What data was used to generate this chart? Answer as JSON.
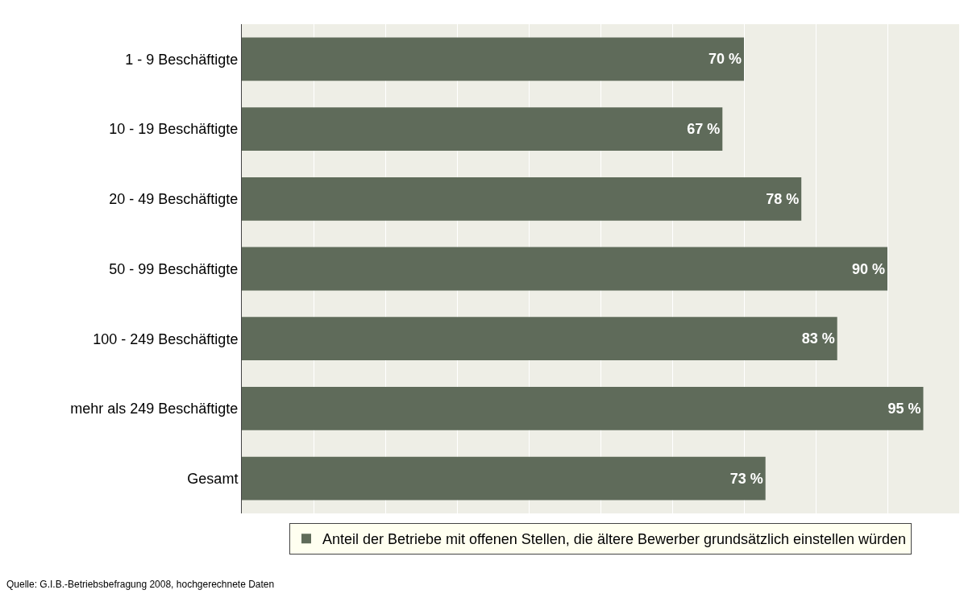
{
  "chart_data": {
    "type": "bar",
    "orientation": "horizontal",
    "categories": [
      "1 - 9 Beschäftigte",
      "10 - 19 Beschäftigte",
      "20 - 49 Beschäftigte",
      "50 - 99 Beschäftigte",
      "100 - 249 Beschäftigte",
      "mehr als 249 Beschäftigte",
      "Gesamt"
    ],
    "series": [
      {
        "name": "Anteil der Betriebe mit offenen Stellen, die ältere Bewerber grundsätzlich einstellen würden",
        "color": "#5f6b5a",
        "values": [
          70,
          67,
          78,
          90,
          83,
          95,
          73
        ],
        "value_labels": [
          "70 %",
          "67 %",
          "78 %",
          "90 %",
          "83 %",
          "95 %",
          "73 %"
        ]
      }
    ],
    "xlim": [
      0,
      100
    ],
    "xticks": [
      {
        "value": 0,
        "label": null
      },
      {
        "value": 10,
        "label": null
      },
      {
        "value": 20,
        "label": null
      },
      {
        "value": 30,
        "label": null
      },
      {
        "value": 40,
        "label": null
      },
      {
        "value": 50,
        "label": null
      },
      {
        "value": 60,
        "label": null
      },
      {
        "value": 70,
        "label": null
      },
      {
        "value": 80,
        "label": null
      },
      {
        "value": 90,
        "label": null
      },
      {
        "value": 100,
        "label": null
      }
    ],
    "grid": "x",
    "tick_labels": "y",
    "legend": "bottom",
    "annotations": [
      "Quelle: G.I.B.-Betriebsbefragung 2008, hochgerechnete Daten"
    ]
  }
}
